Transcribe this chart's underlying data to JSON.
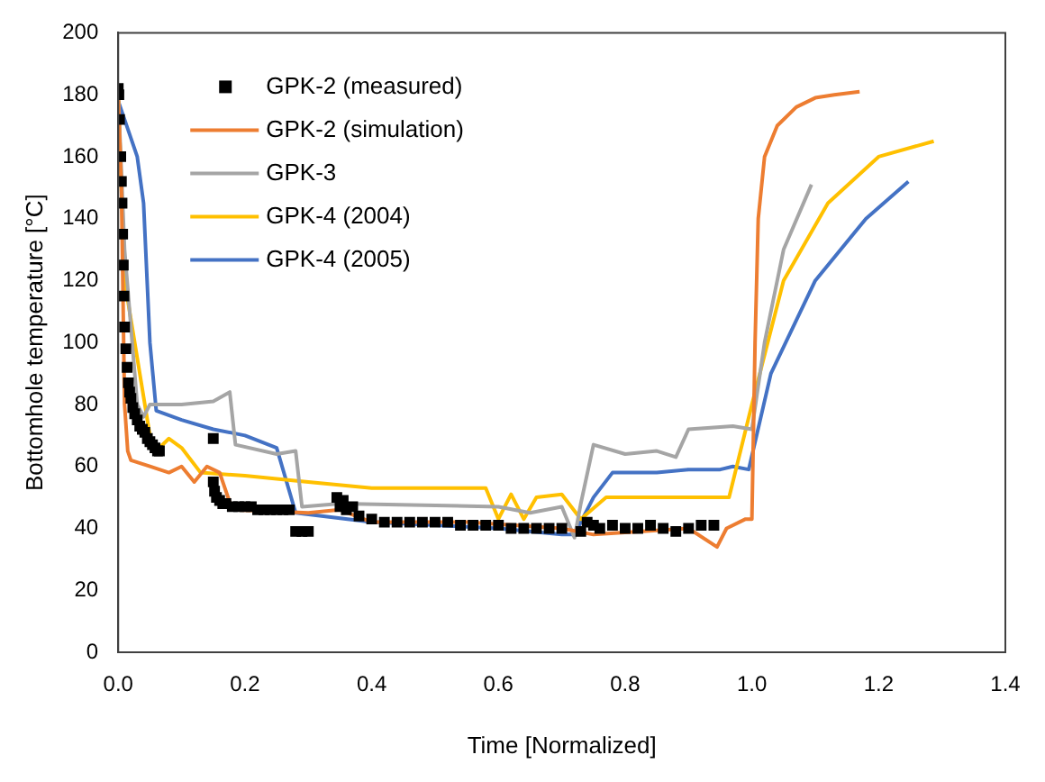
{
  "chart_data": {
    "type": "line",
    "xlabel": "Time [Normalized]",
    "ylabel": "Bottomhole temperature [°C]",
    "xlim": [
      0,
      1.4
    ],
    "ylim": [
      0,
      200
    ],
    "xticks": [
      {
        "value": 0,
        "label": "0.0"
      },
      {
        "value": 0.2,
        "label": "0.2"
      },
      {
        "value": 0.4,
        "label": "0.4"
      },
      {
        "value": 0.6,
        "label": "0.6"
      },
      {
        "value": 0.8,
        "label": "0.8"
      },
      {
        "value": 1,
        "label": "1.0"
      },
      {
        "value": 1.2,
        "label": "1.2"
      },
      {
        "value": 1.4,
        "label": "1.4"
      }
    ],
    "yticks": [
      0,
      20,
      40,
      60,
      80,
      100,
      120,
      140,
      160,
      180,
      200
    ],
    "grid": false,
    "legend": "top left",
    "series": [
      {
        "name": "GPK-2 (measured)",
        "type": "scatter",
        "marker": "square",
        "color": "#000000",
        "x": [
          0,
          0.001,
          0.002,
          0.004,
          0.005,
          0.006,
          0.007,
          0.008,
          0.009,
          0.01,
          0.012,
          0.014,
          0.016,
          0.018,
          0.02,
          0.023,
          0.026,
          0.03,
          0.034,
          0.038,
          0.042,
          0.046,
          0.05,
          0.054,
          0.058,
          0.062,
          0.065,
          0.15,
          0.15,
          0.152,
          0.155,
          0.16,
          0.165,
          0.17,
          0.18,
          0.19,
          0.2,
          0.21,
          0.22,
          0.23,
          0.24,
          0.25,
          0.26,
          0.27,
          0.28,
          0.29,
          0.3,
          0.345,
          0.35,
          0.355,
          0.36,
          0.37,
          0.38,
          0.4,
          0.42,
          0.44,
          0.46,
          0.48,
          0.5,
          0.52,
          0.54,
          0.56,
          0.58,
          0.6,
          0.62,
          0.64,
          0.66,
          0.68,
          0.7,
          0.73,
          0.74,
          0.75,
          0.76,
          0.78,
          0.8,
          0.82,
          0.84,
          0.86,
          0.88,
          0.9,
          0.92,
          0.94
        ],
        "values": [
          182,
          180,
          172,
          160,
          152,
          145,
          135,
          125,
          115,
          105,
          98,
          92,
          87,
          84,
          82,
          79,
          77,
          75,
          73,
          72,
          71,
          69,
          68,
          67,
          66,
          65,
          65,
          69,
          55,
          52,
          50,
          49,
          48,
          48,
          47,
          47,
          47,
          47,
          46,
          46,
          46,
          46,
          46,
          46,
          39,
          39,
          39,
          50,
          47,
          49,
          46,
          47,
          44,
          43,
          42,
          42,
          42,
          42,
          42,
          42,
          41,
          41,
          41,
          41,
          40,
          40,
          40,
          40,
          40,
          39,
          42,
          41,
          40,
          41,
          40,
          40,
          41,
          40,
          39,
          40,
          41,
          41
        ]
      },
      {
        "name": "GPK-2 (simulation)",
        "color": "#ed7d31",
        "x": [
          0,
          0.005,
          0.01,
          0.015,
          0.02,
          0.05,
          0.08,
          0.1,
          0.12,
          0.14,
          0.16,
          0.18,
          0.3,
          0.35,
          0.4,
          0.55,
          0.7,
          0.75,
          0.9,
          0.945,
          0.96,
          0.99,
          1,
          1.005,
          1.01,
          1.02,
          1.04,
          1.07,
          1.1,
          1.13,
          1.17
        ],
        "values": [
          180,
          150,
          80,
          65,
          62,
          60,
          58,
          60,
          55,
          60,
          58,
          46,
          45,
          46,
          42,
          42,
          40,
          38,
          40,
          34,
          40,
          43,
          43,
          100,
          140,
          160,
          170,
          176,
          179,
          180,
          181
        ]
      },
      {
        "name": "GPK-3",
        "color": "#a5a5a5",
        "x": [
          0,
          0.01,
          0.03,
          0.04,
          0.05,
          0.1,
          0.15,
          0.176,
          0.185,
          0.25,
          0.28,
          0.29,
          0.35,
          0.6,
          0.65,
          0.7,
          0.72,
          0.73,
          0.75,
          0.8,
          0.85,
          0.88,
          0.9,
          0.97,
          1,
          1.02,
          1.05,
          1.094
        ],
        "values": [
          180,
          130,
          80,
          76,
          80,
          80,
          81,
          84,
          67,
          64,
          65,
          47,
          48,
          47,
          45,
          47,
          37,
          48,
          67,
          64,
          65,
          63,
          72,
          73,
          72,
          100,
          130,
          151
        ]
      },
      {
        "name": "GPK-4 (2004)",
        "color": "#ffc000",
        "x": [
          0,
          0.01,
          0.05,
          0.06,
          0.08,
          0.1,
          0.13,
          0.2,
          0.3,
          0.4,
          0.58,
          0.6,
          0.62,
          0.64,
          0.66,
          0.7,
          0.73,
          0.77,
          0.95,
          0.964,
          1,
          1.05,
          1.12,
          1.2,
          1.287
        ],
        "values": [
          180,
          120,
          70,
          65,
          69,
          66,
          58,
          57,
          55,
          53,
          53,
          43,
          51,
          43,
          50,
          51,
          43,
          50,
          50,
          50,
          80,
          120,
          145,
          160,
          165
        ]
      },
      {
        "name": "GPK-4 (2005)",
        "color": "#4472c4",
        "x": [
          0,
          0.03,
          0.04,
          0.05,
          0.06,
          0.1,
          0.15,
          0.2,
          0.25,
          0.28,
          0.4,
          0.6,
          0.7,
          0.72,
          0.75,
          0.78,
          0.85,
          0.9,
          0.95,
          0.97,
          0.995,
          1.03,
          1.1,
          1.18,
          1.247
        ],
        "values": [
          178,
          160,
          145,
          100,
          78,
          75,
          72,
          70,
          66,
          45,
          42,
          40,
          38,
          38,
          50,
          58,
          58,
          59,
          59,
          60,
          59,
          90,
          120,
          140,
          152
        ]
      }
    ]
  }
}
